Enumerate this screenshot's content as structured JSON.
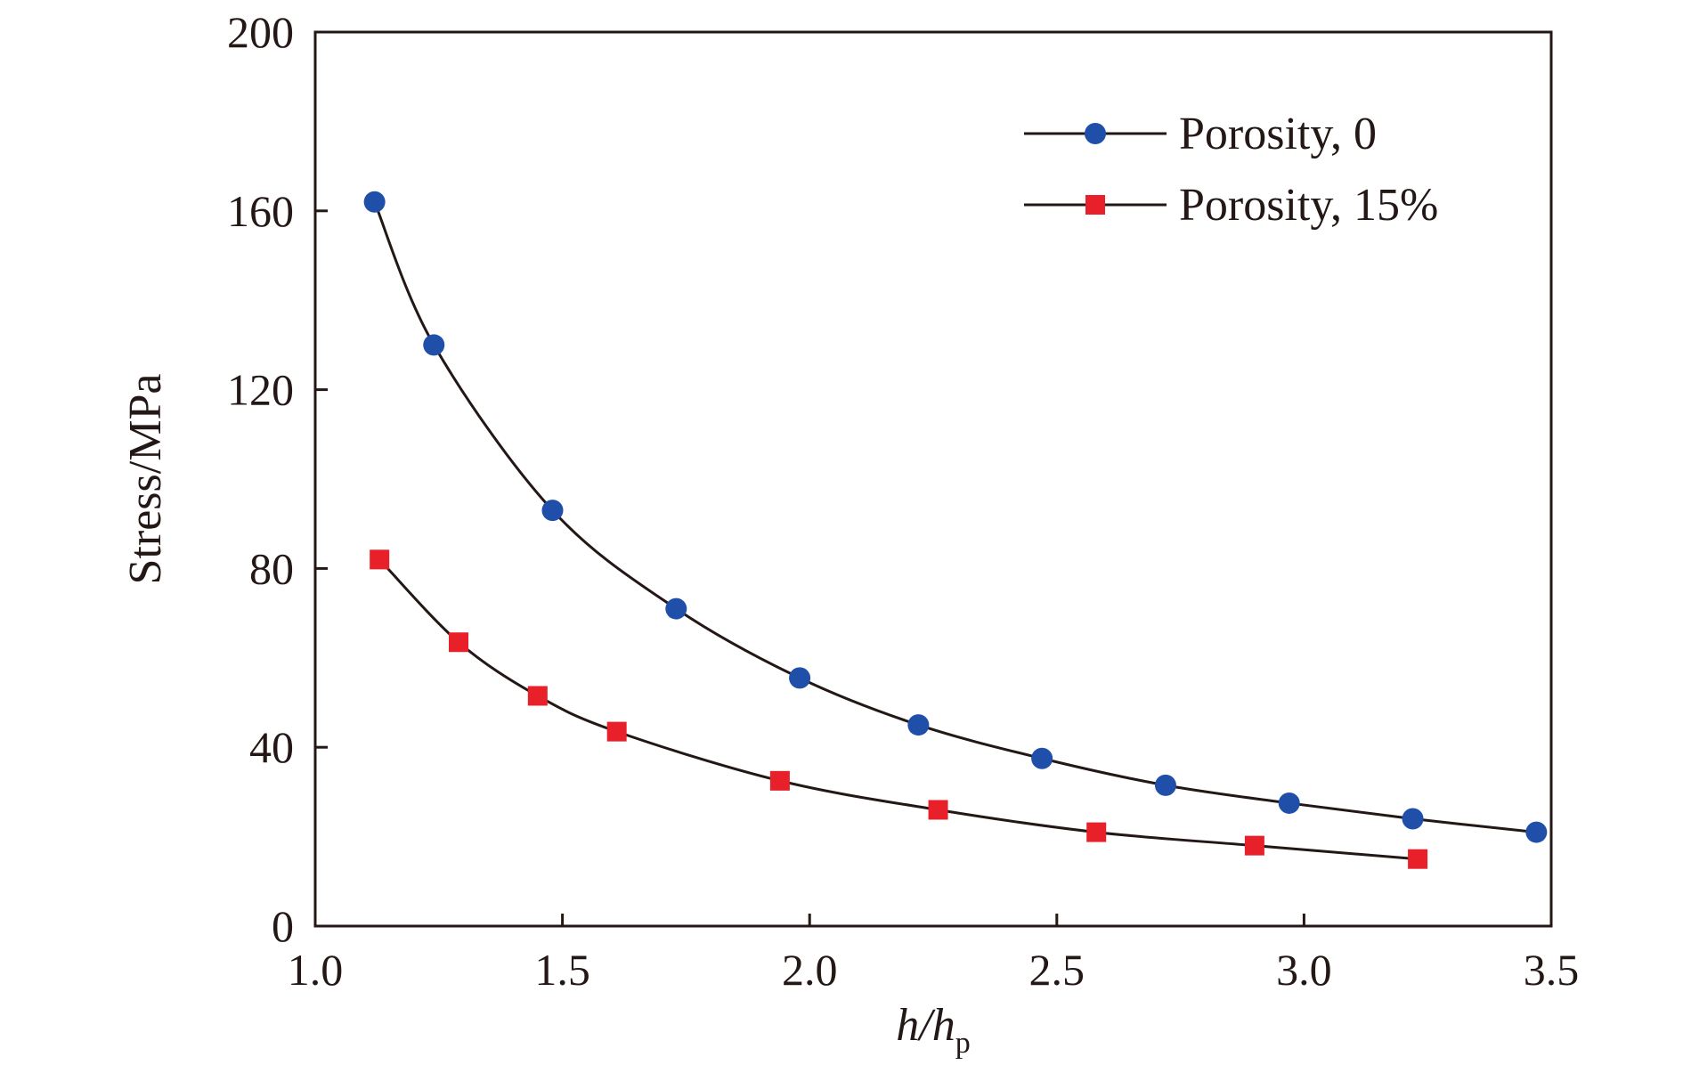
{
  "chart_data": {
    "type": "line",
    "title": "",
    "xlabel": {
      "main": "h/h",
      "sub": "p"
    },
    "ylabel": "Stress/MPa",
    "xlim": [
      1.0,
      3.5
    ],
    "ylim": [
      0,
      200
    ],
    "xticks": [
      1.0,
      1.5,
      2.0,
      2.5,
      3.0,
      3.5
    ],
    "xtick_labels": [
      "1.0",
      "1.5",
      "2.0",
      "2.5",
      "3.0",
      "3.5"
    ],
    "yticks": [
      0,
      40,
      80,
      120,
      160,
      200
    ],
    "ytick_labels": [
      "0",
      "40",
      "80",
      "120",
      "160",
      "200"
    ],
    "grid": false,
    "legend_position": "top-right",
    "series": [
      {
        "name": "Porosity, 0",
        "marker": "circle",
        "color": "#1f4fa8",
        "x": [
          1.12,
          1.24,
          1.48,
          1.73,
          1.98,
          2.22,
          2.47,
          2.72,
          2.97,
          3.22,
          3.47
        ],
        "y": [
          162,
          130,
          93,
          71,
          55.5,
          45,
          37.5,
          31.5,
          27.5,
          24,
          21
        ]
      },
      {
        "name": "Porosity, 15%",
        "marker": "square",
        "color": "#e8202a",
        "x": [
          1.13,
          1.29,
          1.45,
          1.61,
          1.94,
          2.26,
          2.58,
          2.9,
          3.23
        ],
        "y": [
          82,
          63.5,
          51.5,
          43.5,
          32.5,
          26,
          21,
          18,
          15
        ]
      }
    ]
  }
}
